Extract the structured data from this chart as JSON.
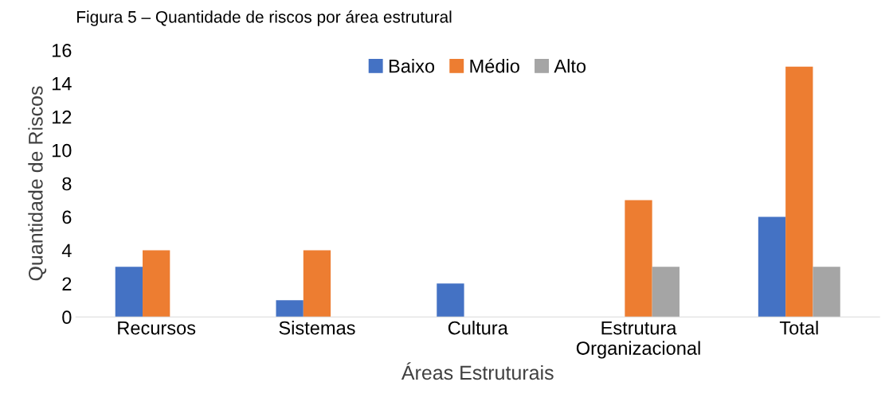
{
  "chart_data": {
    "type": "bar",
    "title": "Figura 5 – Quantidade de riscos por área estrutural",
    "categories": [
      "Recursos",
      "Sistemas",
      "Cultura",
      "Estrutura\nOrganizacional",
      "Total"
    ],
    "series": [
      {
        "name": "Baixo",
        "color": "#4472c4",
        "values": [
          3,
          1,
          2,
          0,
          6
        ]
      },
      {
        "name": "Médio",
        "color": "#ed7d31",
        "values": [
          4,
          4,
          0,
          7,
          15
        ]
      },
      {
        "name": "Alto",
        "color": "#a5a5a5",
        "values": [
          0,
          0,
          0,
          3,
          3
        ]
      }
    ],
    "xlabel": "Áreas Estruturais",
    "ylabel": "Quantidade de Riscos",
    "ylim": [
      0,
      16
    ],
    "yticks": [
      0,
      2,
      4,
      6,
      8,
      10,
      12,
      14,
      16
    ],
    "grid": false,
    "legend": "top"
  }
}
